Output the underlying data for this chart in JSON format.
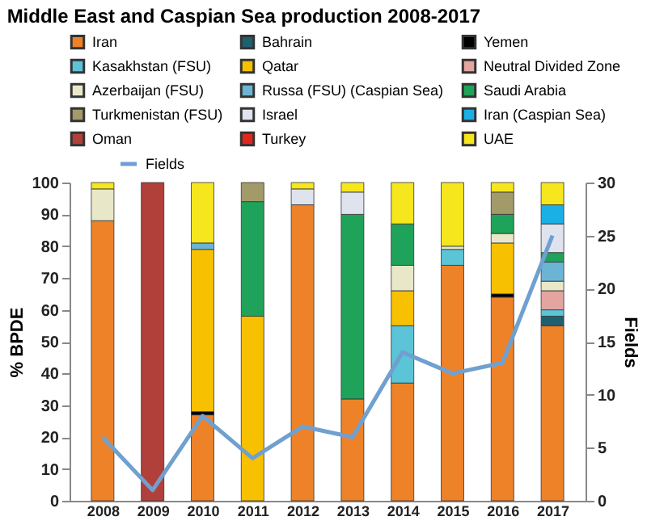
{
  "chart_data": {
    "type": "bar",
    "title": "Middle East and Caspian Sea production 2008-2017",
    "categories": [
      "2008",
      "2009",
      "2010",
      "2011",
      "2012",
      "2013",
      "2014",
      "2015",
      "2016",
      "2017"
    ],
    "stacked": true,
    "ylabel": "% BPDE",
    "y2label": "Fields",
    "ylim": [
      0,
      100
    ],
    "yticks": [
      0,
      10,
      20,
      30,
      40,
      50,
      60,
      70,
      80,
      90,
      100
    ],
    "y2lim": [
      0,
      30
    ],
    "y2ticks": [
      0,
      5,
      10,
      15,
      20,
      25,
      30
    ],
    "grid": false,
    "legend": "top",
    "series": [
      {
        "name": "Iran",
        "color": "#ee8228",
        "values": [
          88,
          null,
          27,
          null,
          93,
          32,
          37,
          74,
          64,
          55
        ]
      },
      {
        "name": "Bahrain",
        "color": "#1f6070",
        "values": [
          null,
          null,
          null,
          null,
          null,
          null,
          null,
          null,
          null,
          3
        ]
      },
      {
        "name": "Yemen",
        "color": "#000000",
        "values": [
          null,
          null,
          1,
          null,
          null,
          null,
          null,
          null,
          1,
          null
        ]
      },
      {
        "name": "Kasakhstan (FSU)",
        "color": "#5bc4d6",
        "values": [
          null,
          null,
          null,
          null,
          null,
          null,
          18,
          5,
          null,
          2
        ]
      },
      {
        "name": "Qatar",
        "color": "#f7c000",
        "values": [
          null,
          null,
          51,
          58,
          null,
          null,
          11,
          null,
          16,
          null
        ]
      },
      {
        "name": "Neutral Divided Zone",
        "color": "#e4a4a0",
        "values": [
          null,
          null,
          null,
          null,
          null,
          null,
          null,
          null,
          null,
          6
        ]
      },
      {
        "name": "Azerbaijan (FSU)",
        "color": "#e8e8c8",
        "values": [
          10,
          null,
          null,
          null,
          null,
          null,
          8,
          1,
          3,
          3
        ]
      },
      {
        "name": "Russa (FSU) (Caspian Sea)",
        "color": "#6cb4d4",
        "values": [
          null,
          null,
          2,
          null,
          null,
          null,
          null,
          null,
          null,
          6
        ]
      },
      {
        "name": "Saudi Arabia",
        "color": "#1fa35a",
        "values": [
          null,
          null,
          null,
          36,
          null,
          58,
          13,
          null,
          6,
          3
        ]
      },
      {
        "name": "Turkmenistan (FSU)",
        "color": "#a39a6a",
        "values": [
          null,
          null,
          null,
          6,
          null,
          null,
          null,
          null,
          7,
          null
        ]
      },
      {
        "name": "Israel",
        "color": "#dfe3ee",
        "values": [
          null,
          null,
          null,
          null,
          5,
          7,
          null,
          null,
          null,
          9
        ]
      },
      {
        "name": "Iran (Caspian Sea)",
        "color": "#1ab0e6",
        "values": [
          null,
          null,
          null,
          null,
          null,
          null,
          null,
          null,
          null,
          6
        ]
      },
      {
        "name": "Oman",
        "color": "#b2403a",
        "values": [
          null,
          100,
          null,
          null,
          null,
          null,
          null,
          null,
          null,
          null
        ]
      },
      {
        "name": "Turkey",
        "color": "#e2261f",
        "values": [
          null,
          null,
          null,
          null,
          null,
          null,
          null,
          null,
          null,
          null
        ]
      },
      {
        "name": "UAE",
        "color": "#f5e61e",
        "values": [
          2,
          null,
          19,
          null,
          2,
          3,
          13,
          20,
          3,
          7
        ]
      },
      {
        "name": "Fields",
        "type": "line",
        "axis": "y2",
        "color": "#6fa0d0",
        "values": [
          6,
          1,
          8,
          4,
          7,
          6,
          14,
          12,
          13,
          25
        ]
      }
    ]
  }
}
